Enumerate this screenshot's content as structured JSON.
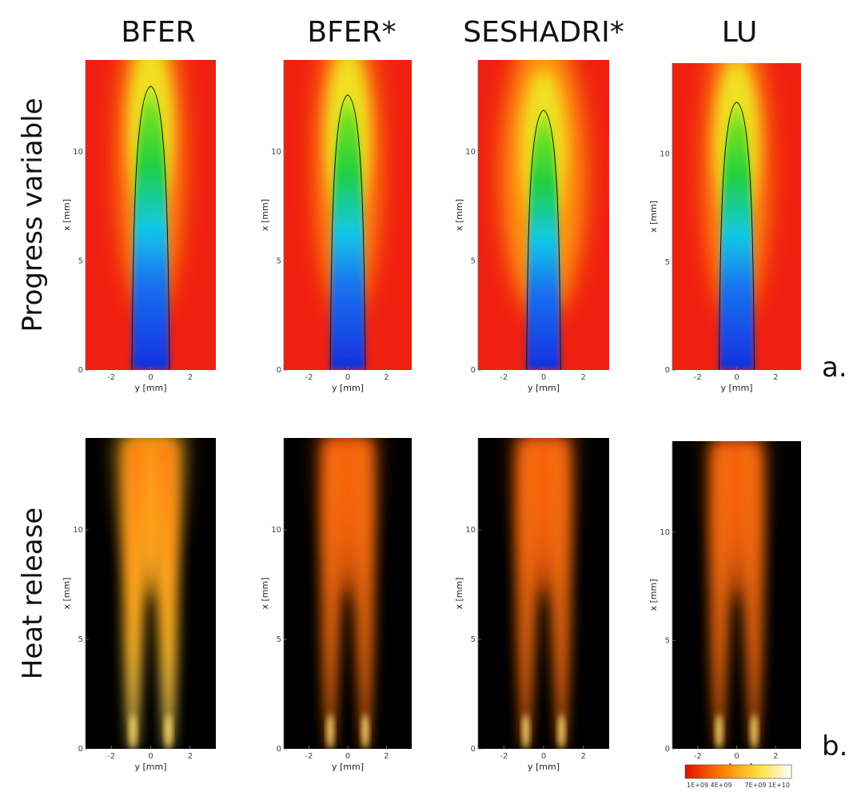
{
  "columns": [
    "BFER",
    "BFER*",
    "SESHADRI*",
    "LU"
  ],
  "rows": [
    {
      "label": "Progress variable",
      "tag": "a."
    },
    {
      "label": "Heat release",
      "tag": "b."
    }
  ],
  "axes": {
    "xlabel": "y [mm]",
    "ylabel": "x [mm]",
    "xticks": [
      -2,
      0,
      2
    ],
    "yticks": [
      0,
      5,
      10
    ],
    "xlim": [
      -3.3,
      3.3
    ],
    "ylim": [
      0,
      14.2
    ]
  },
  "colorbar": [
    "1E+09",
    "4E+09",
    "7E+09",
    "1E+10"
  ]
}
